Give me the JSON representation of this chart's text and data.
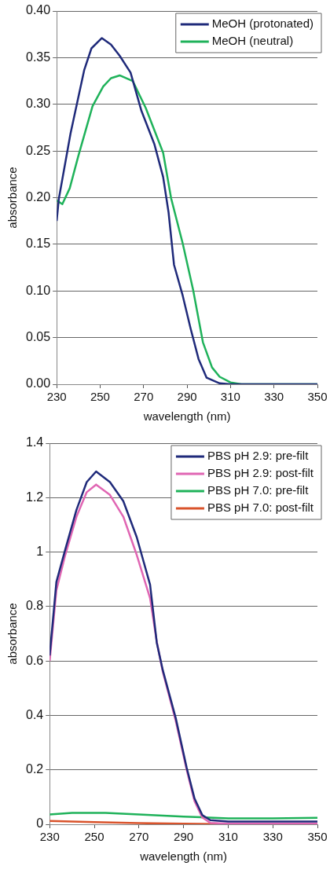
{
  "chart_data": [
    {
      "type": "line",
      "xlabel": "wavelength (nm)",
      "ylabel": "absorbance",
      "xlim": [
        230,
        350
      ],
      "xticks": [
        230,
        250,
        270,
        290,
        310,
        330,
        350
      ],
      "ylim": [
        0,
        0.4
      ],
      "yticks": [
        {
          "value": 0,
          "label": "0.00"
        },
        {
          "value": 0.05,
          "label": "0.05"
        },
        {
          "value": 0.1,
          "label": "0.10"
        },
        {
          "value": 0.15,
          "label": "0.15"
        },
        {
          "value": 0.2,
          "label": "0.20"
        },
        {
          "value": 0.25,
          "label": "0.25"
        },
        {
          "value": 0.3,
          "label": "0.30"
        },
        {
          "value": 0.35,
          "label": "0.35"
        },
        {
          "value": 0.4,
          "label": "0.40"
        }
      ],
      "grid": "y",
      "legend": "top right",
      "marker": "none",
      "line_style": "solid",
      "series": [
        {
          "name": "MeOH (protonated)",
          "color": "#1f2a7a",
          "x": [
            230,
            231,
            236.4,
            242.7,
            246,
            250.8,
            255,
            259,
            264,
            269,
            275,
            279,
            281.5,
            284,
            288,
            291.6,
            295.3,
            299,
            305,
            310,
            350
          ],
          "values": [
            0.175,
            0.199,
            0.269,
            0.337,
            0.36,
            0.371,
            0.364,
            0.352,
            0.334,
            0.293,
            0.257,
            0.222,
            0.184,
            0.128,
            0.095,
            0.06,
            0.027,
            0.007,
            0.001,
            0,
            0
          ]
        },
        {
          "name": "MeOH (neutral)",
          "color": "#1fb25a",
          "x": [
            230,
            232.6,
            236,
            240,
            246.5,
            251.4,
            255,
            259,
            265,
            271,
            279,
            282.7,
            288,
            292.8,
            297.3,
            301.5,
            305,
            310,
            315,
            350
          ],
          "values": [
            0.197,
            0.193,
            0.21,
            0.245,
            0.298,
            0.319,
            0.328,
            0.331,
            0.325,
            0.296,
            0.248,
            0.199,
            0.151,
            0.101,
            0.045,
            0.018,
            0.008,
            0.002,
            0,
            0
          ]
        }
      ]
    },
    {
      "type": "line",
      "xlabel": "wavelength (nm)",
      "ylabel": "absorbance",
      "xlim": [
        230,
        350
      ],
      "xticks": [
        230,
        250,
        270,
        290,
        310,
        330,
        350
      ],
      "ylim": [
        0,
        1.4
      ],
      "yticks": [
        0,
        0.2,
        0.4,
        0.6,
        0.8,
        1,
        1.2,
        1.4
      ],
      "grid": "y",
      "legend": "top right",
      "marker": "none",
      "line_style": "solid",
      "series": [
        {
          "name": "PBS pH 2.9: pre-filt",
          "color": "#1f2a7a",
          "x": [
            230,
            233,
            237,
            242,
            246.6,
            250.8,
            257,
            263,
            269,
            275,
            278,
            280.7,
            286.5,
            291.4,
            294.9,
            298.4,
            302,
            310,
            350
          ],
          "values": [
            0.62,
            0.89,
            1.01,
            1.155,
            1.257,
            1.296,
            1.257,
            1.187,
            1.055,
            0.88,
            0.667,
            0.566,
            0.39,
            0.208,
            0.095,
            0.034,
            0.015,
            0.01,
            0.01
          ]
        },
        {
          "name": "PBS pH 2.9: post-filt",
          "color": "#e066b3",
          "x": [
            230,
            233,
            237,
            242,
            246.6,
            250.8,
            257,
            263,
            269,
            275,
            278,
            280.7,
            286.5,
            291.4,
            294.9,
            298.4,
            302,
            310,
            350
          ],
          "values": [
            0.6,
            0.86,
            0.99,
            1.13,
            1.22,
            1.248,
            1.21,
            1.13,
            0.99,
            0.83,
            0.67,
            0.56,
            0.38,
            0.2,
            0.085,
            0.025,
            0.005,
            0.002,
            0.002
          ]
        },
        {
          "name": "PBS pH 7.0: pre-filt",
          "color": "#1fb25a",
          "x": [
            230,
            240,
            255,
            270,
            290,
            310,
            330,
            350
          ],
          "values": [
            0.036,
            0.042,
            0.042,
            0.036,
            0.028,
            0.022,
            0.022,
            0.024
          ]
        },
        {
          "name": "PBS pH 7.0: post-filt",
          "color": "#d9532b",
          "x": [
            230,
            250,
            270,
            290,
            310,
            350
          ],
          "values": [
            0.012,
            0.008,
            0.004,
            0.002,
            0.001,
            0.001
          ]
        }
      ]
    }
  ]
}
